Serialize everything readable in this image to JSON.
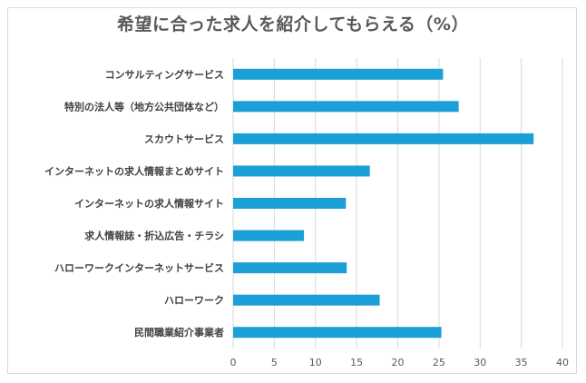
{
  "chart_data": {
    "type": "bar",
    "orientation": "horizontal",
    "title": "希望に合った求人を紹介してもらえる（%）",
    "categories": [
      "コンサルティングサービス",
      "特別の法人等（地方公共団体など）",
      "スカウトサービス",
      "インターネットの求人情報まとめサイト",
      "インターネットの求人情報サイト",
      "求人情報誌・折込広告・チラシ",
      "ハローワークインターネットサービス",
      "ハローワーク",
      "民間職業紹介事業者"
    ],
    "values": [
      25.5,
      27.4,
      36.5,
      16.6,
      13.7,
      8.6,
      13.8,
      17.8,
      25.3
    ],
    "xlim": [
      0,
      40
    ],
    "xticks": [
      "0",
      "5",
      "10",
      "15",
      "20",
      "25",
      "30",
      "35",
      "40"
    ],
    "grid": true,
    "bar_color": "#1a9fd6",
    "grid_color": "#d9d9d9"
  }
}
